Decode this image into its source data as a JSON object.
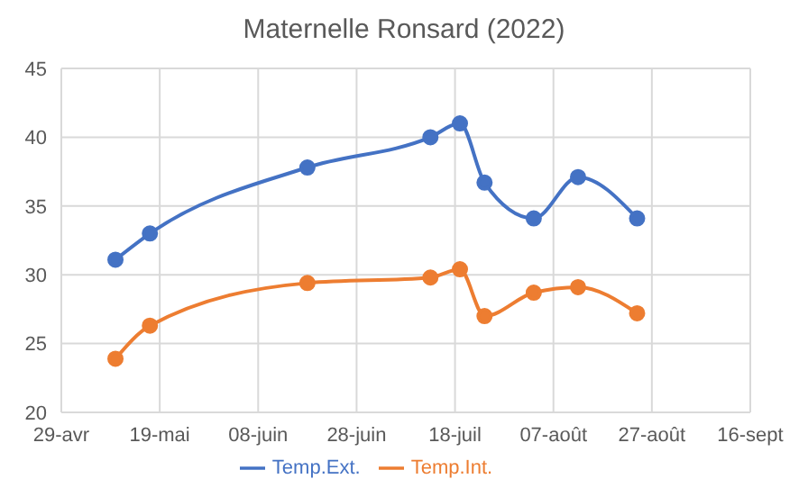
{
  "chart_data": {
    "type": "line",
    "title": "Maternelle Ronsard (2022)",
    "x": [
      "2022-05-10",
      "2022-05-17",
      "2022-06-18",
      "2022-07-13",
      "2022-07-19",
      "2022-07-24",
      "2022-08-03",
      "2022-08-12",
      "2022-08-24"
    ],
    "series": [
      {
        "name": "Temp.Ext.",
        "color": "#4472c4",
        "values": [
          31.1,
          33.0,
          37.8,
          40.0,
          41.0,
          36.7,
          34.1,
          37.1,
          34.1
        ]
      },
      {
        "name": "Temp.Int.",
        "color": "#ed7d31",
        "values": [
          23.9,
          26.3,
          29.4,
          29.8,
          30.4,
          27.0,
          28.7,
          29.1,
          27.2
        ]
      }
    ],
    "xlim": [
      "2022-04-29",
      "2022-09-16"
    ],
    "xticks": [
      {
        "value": "2022-04-29",
        "label": "29-avr"
      },
      {
        "value": "2022-05-19",
        "label": "19-mai"
      },
      {
        "value": "2022-06-08",
        "label": "08-juin"
      },
      {
        "value": "2022-06-28",
        "label": "28-juin"
      },
      {
        "value": "2022-07-18",
        "label": "18-juil"
      },
      {
        "value": "2022-08-07",
        "label": "07-août"
      },
      {
        "value": "2022-08-27",
        "label": "27-août"
      },
      {
        "value": "2022-09-16",
        "label": "16-sept"
      }
    ],
    "ylim": [
      20,
      45
    ],
    "yticks": [
      20,
      25,
      30,
      35,
      40,
      45
    ],
    "grid": true,
    "legend": "bottom",
    "marker": "circle",
    "line_style": "solid"
  }
}
